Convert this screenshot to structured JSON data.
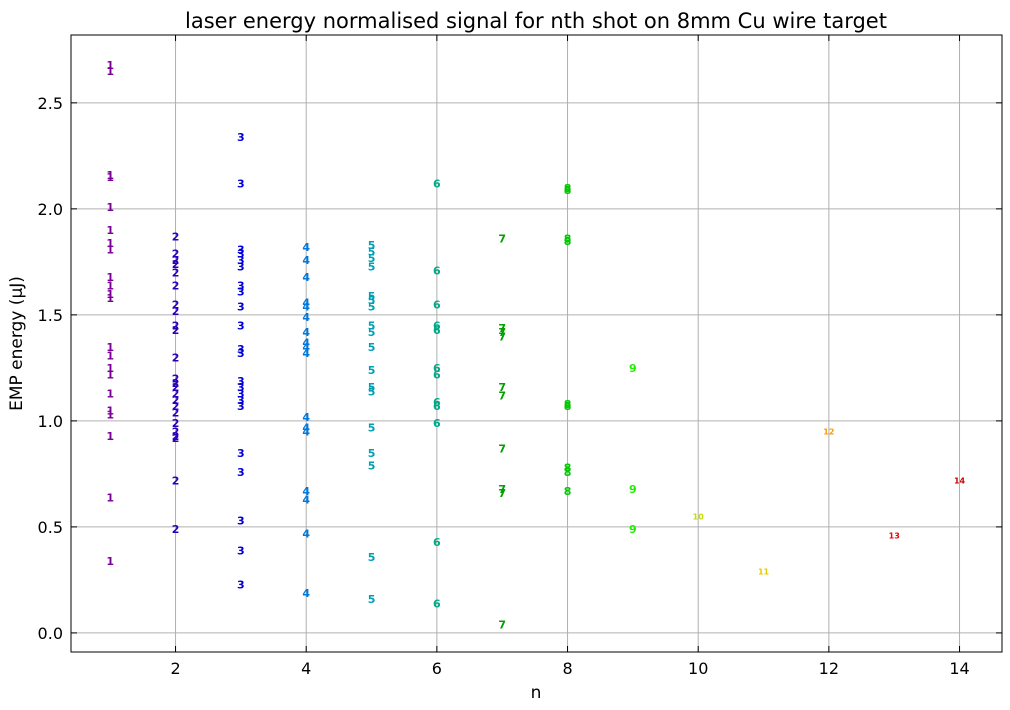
{
  "chart_data": {
    "type": "scatter",
    "title": "laser energy normalised signal for nth shot on 8mm Cu wire target",
    "xlabel": "n",
    "ylabel": "EMP energy (μJ)",
    "xlim": [
      0.4,
      14.65
    ],
    "ylim": [
      -0.09,
      2.82
    ],
    "xticks": [
      2,
      4,
      6,
      8,
      10,
      12,
      14
    ],
    "yticks": [
      0.0,
      0.5,
      1.0,
      1.5,
      2.0,
      2.5
    ],
    "xtick_labels": [
      "2",
      "4",
      "6",
      "8",
      "10",
      "12",
      "14"
    ],
    "ytick_labels": [
      "0.0",
      "0.5",
      "1.0",
      "1.5",
      "2.0",
      "2.5"
    ],
    "grid": true,
    "marker": "point label shows shot number n",
    "series": [
      {
        "n": 1,
        "label": "1",
        "color": "#7b0096",
        "y": [
          2.68,
          2.65,
          2.16,
          2.15,
          2.01,
          1.9,
          1.84,
          1.81,
          1.68,
          1.64,
          1.6,
          1.58,
          1.35,
          1.31,
          1.25,
          1.22,
          1.13,
          1.05,
          1.03,
          0.93,
          0.64,
          0.34
        ]
      },
      {
        "n": 2,
        "label": "2",
        "color": "#2a00b8",
        "y": [
          1.87,
          1.79,
          1.76,
          1.74,
          1.7,
          1.64,
          1.55,
          1.52,
          1.45,
          1.43,
          1.3,
          1.2,
          1.18,
          1.16,
          1.13,
          1.1,
          1.07,
          1.04,
          0.99,
          0.95,
          0.93,
          0.92,
          0.72,
          0.49
        ]
      },
      {
        "n": 3,
        "label": "3",
        "color": "#0000d4",
        "y": [
          2.34,
          2.12,
          1.81,
          1.79,
          1.76,
          1.73,
          1.64,
          1.61,
          1.54,
          1.45,
          1.34,
          1.32,
          1.19,
          1.16,
          1.13,
          1.1,
          1.07,
          0.85,
          0.76,
          0.53,
          0.39,
          0.23
        ]
      },
      {
        "n": 4,
        "label": "4",
        "color": "#0078dc",
        "y": [
          1.82,
          1.76,
          1.68,
          1.56,
          1.54,
          1.49,
          1.42,
          1.37,
          1.35,
          1.32,
          1.02,
          0.97,
          0.95,
          0.67,
          0.63,
          0.47,
          0.19
        ]
      },
      {
        "n": 5,
        "label": "5",
        "color": "#00a0b4",
        "y": [
          1.83,
          1.8,
          1.77,
          1.73,
          1.59,
          1.57,
          1.54,
          1.45,
          1.42,
          1.35,
          1.24,
          1.16,
          1.14,
          0.97,
          0.85,
          0.79,
          0.36,
          0.16
        ]
      },
      {
        "n": 6,
        "label": "6",
        "color": "#00aa88",
        "y": [
          2.12,
          1.71,
          1.55,
          1.45,
          1.43,
          1.25,
          1.22,
          1.09,
          1.07,
          0.99,
          0.43,
          0.14
        ]
      },
      {
        "n": 7,
        "label": "7",
        "color": "#00a000",
        "y": [
          1.86,
          1.44,
          1.42,
          1.4,
          1.16,
          1.12,
          0.87,
          0.68,
          0.66,
          0.04
        ]
      },
      {
        "n": 8,
        "label": "8",
        "color": "#00c800",
        "y": [
          2.1,
          2.09,
          1.86,
          1.85,
          1.08,
          1.07,
          0.78,
          0.76,
          0.67
        ]
      },
      {
        "n": 9,
        "label": "9",
        "color": "#22ee00",
        "y": [
          1.25,
          0.68,
          0.49
        ]
      },
      {
        "n": 10,
        "label": "10",
        "color": "#c8dd00",
        "y": [
          0.55
        ]
      },
      {
        "n": 11,
        "label": "11",
        "color": "#e8c800",
        "y": [
          0.29
        ]
      },
      {
        "n": 12,
        "label": "12",
        "color": "#ff9900",
        "y": [
          0.95
        ]
      },
      {
        "n": 13,
        "label": "13",
        "color": "#ee0000",
        "y": [
          0.46
        ]
      },
      {
        "n": 14,
        "label": "14",
        "color": "#cc0000",
        "y": [
          0.72
        ]
      }
    ]
  }
}
